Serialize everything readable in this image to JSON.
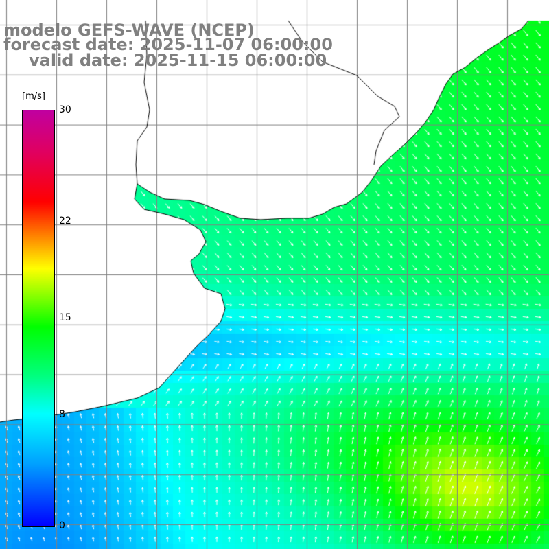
{
  "header": {
    "model": "modelo GEFS-WAVE (NCEP)",
    "forecast": "forecast date: 2025-11-07 06:00:00",
    "valid": "valid date: 2025-11-15 06:00:00"
  },
  "colorbar": {
    "units": "[m/s]",
    "ticks": [
      {
        "label": "30",
        "value": 30
      },
      {
        "label": "22",
        "value": 22
      },
      {
        "label": "15",
        "value": 15
      },
      {
        "label": "8",
        "value": 8
      },
      {
        "label": "0",
        "value": 0
      }
    ],
    "range": [
      0,
      30
    ],
    "colors": [
      "#0000ff",
      "#00a0ff",
      "#00ffff",
      "#00ff80",
      "#00ff00",
      "#80ff00",
      "#ffff00",
      "#ff8000",
      "#ff0000",
      "#c000a0"
    ]
  },
  "map": {
    "variable": "wind speed and direction",
    "grid_color": "#808080",
    "coastline_color": "#000000",
    "land_color": "#ffffff",
    "arrow_color": "#ffffff"
  }
}
